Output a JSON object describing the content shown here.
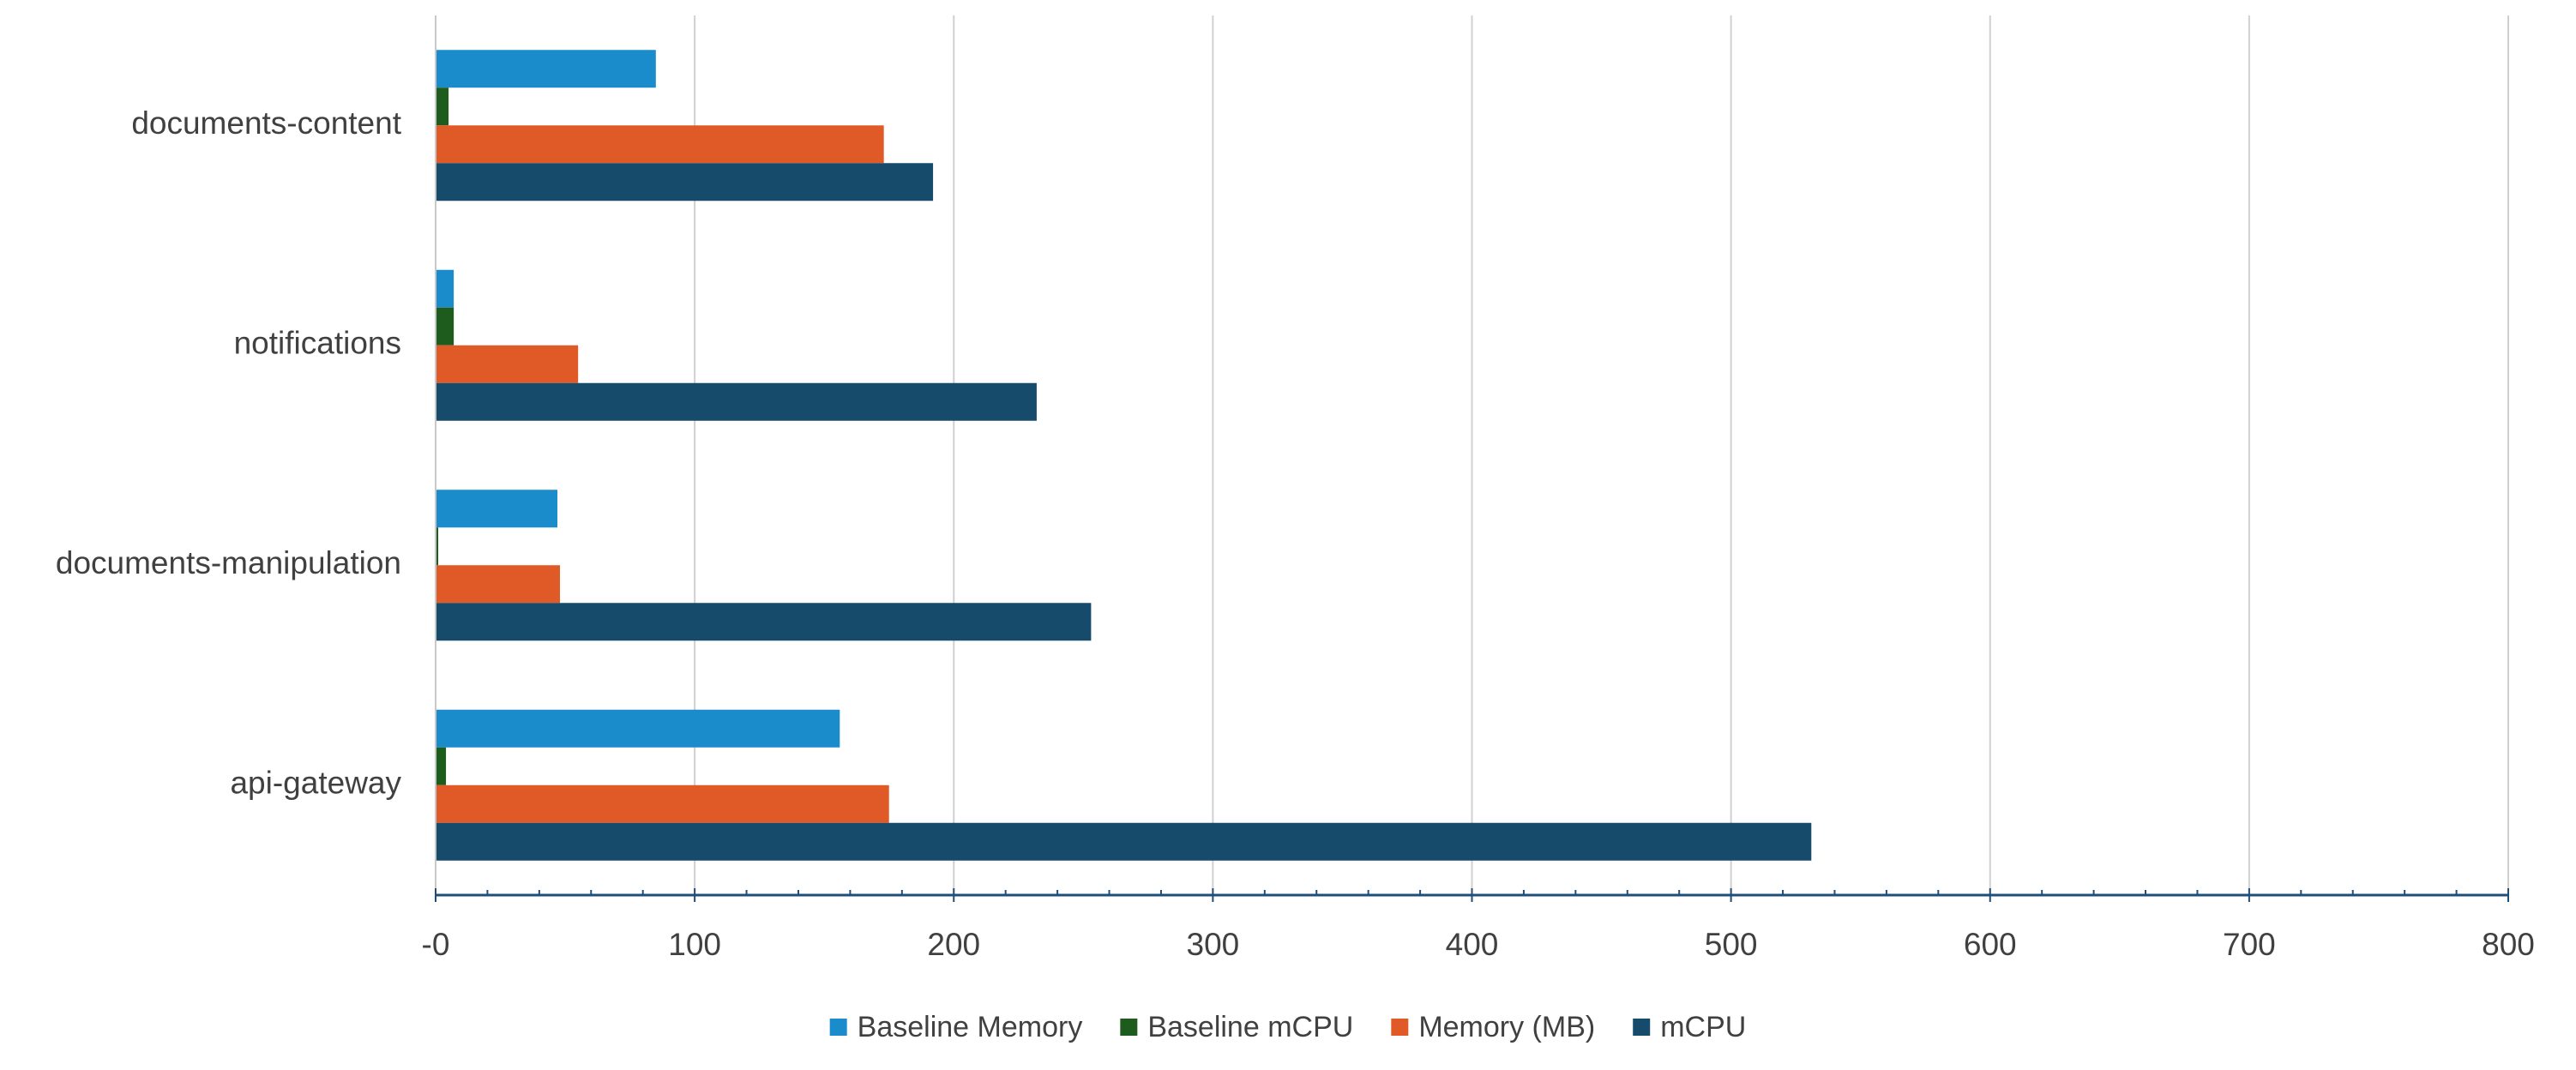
{
  "chart_data": {
    "type": "bar",
    "orientation": "horizontal",
    "categories": [
      "documents-content",
      "notifications",
      "documents-manipulation",
      "api-gateway"
    ],
    "series": [
      {
        "name": "Baseline Memory",
        "color": "#1a8ccb",
        "values": [
          85,
          7,
          47,
          156
        ]
      },
      {
        "name": "Baseline mCPU",
        "color": "#1e5c1e",
        "values": [
          5,
          7,
          1,
          4
        ]
      },
      {
        "name": "Memory (MB)",
        "color": "#e05a28",
        "values": [
          173,
          55,
          48,
          175
        ]
      },
      {
        "name": "mCPU",
        "color": "#174b6c",
        "values": [
          192,
          232,
          253,
          531
        ]
      }
    ],
    "xlim": [
      0,
      800
    ],
    "x_ticks": [
      0,
      100,
      200,
      300,
      400,
      500,
      600,
      700,
      800
    ],
    "x_tick_labels": [
      "-0",
      "100",
      "200",
      "300",
      "400",
      "500",
      "600",
      "700",
      "800"
    ],
    "x_minor_step": 20,
    "grid": true,
    "legend_position": "bottom",
    "title": "",
    "xlabel": "",
    "ylabel": ""
  }
}
